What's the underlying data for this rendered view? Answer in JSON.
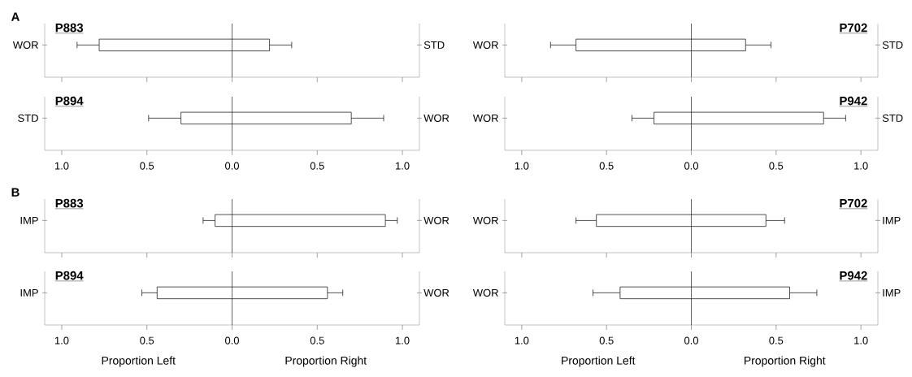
{
  "chart_data": [
    {
      "type": "bar",
      "orientation": "horizontal",
      "title": "P883",
      "subtitle": "A",
      "categories": [
        "WOR"
      ],
      "y2label": "STD",
      "values": [
        1.0
      ],
      "base": [
        -0.78
      ],
      "errors": [
        [
          -0.91,
          0.35
        ]
      ],
      "color": "#ffffff",
      "xlim": [
        -1.1,
        1.1
      ],
      "xticks": [
        {
          "value": -1,
          "label": null
        },
        {
          "value": -0.5,
          "label": null
        },
        {
          "value": 0,
          "label": null
        },
        {
          "value": 0.5,
          "label": null
        },
        {
          "value": 1,
          "label": null
        }
      ],
      "ref_lines": [
        {
          "axis": "x",
          "value": 0
        }
      ],
      "tick_labels": "y"
    },
    {
      "type": "bar",
      "orientation": "horizontal",
      "title": "P702",
      "categories": [
        "WOR"
      ],
      "y2label": "STD",
      "values": [
        1.0
      ],
      "base": [
        -0.68
      ],
      "errors": [
        [
          -0.83,
          0.47
        ]
      ],
      "color": "#ffffff",
      "xlim": [
        -1.1,
        1.1
      ],
      "xticks": [
        {
          "value": -1,
          "label": null
        },
        {
          "value": -0.5,
          "label": null
        },
        {
          "value": 0,
          "label": null
        },
        {
          "value": 0.5,
          "label": null
        },
        {
          "value": 1,
          "label": null
        }
      ],
      "ref_lines": [
        {
          "axis": "x",
          "value": 0
        }
      ],
      "tick_labels": "y"
    },
    {
      "type": "bar",
      "orientation": "horizontal",
      "title": "P894",
      "categories": [
        "STD"
      ],
      "y2label": "WOR",
      "values": [
        1.0
      ],
      "base": [
        -0.3
      ],
      "errors": [
        [
          -0.49,
          0.89
        ]
      ],
      "color": "#ffffff",
      "xlim": [
        -1.1,
        1.1
      ],
      "xticks": [
        {
          "value": -1,
          "label": "1.0"
        },
        {
          "value": -0.5,
          "label": "0.5"
        },
        {
          "value": 0,
          "label": "0.0"
        },
        {
          "value": 0.5,
          "label": "0.5"
        },
        {
          "value": 1,
          "label": "1.0"
        }
      ],
      "ref_lines": [
        {
          "axis": "x",
          "value": 0
        }
      ]
    },
    {
      "type": "bar",
      "orientation": "horizontal",
      "title": "P942",
      "categories": [
        "WOR"
      ],
      "y2label": "STD",
      "values": [
        1.0
      ],
      "base": [
        -0.22
      ],
      "errors": [
        [
          -0.35,
          0.91
        ]
      ],
      "color": "#ffffff",
      "xlim": [
        -1.1,
        1.1
      ],
      "xticks": [
        {
          "value": -1,
          "label": "1.0"
        },
        {
          "value": -0.5,
          "label": "0.5"
        },
        {
          "value": 0,
          "label": "0.0"
        },
        {
          "value": 0.5,
          "label": "0.5"
        },
        {
          "value": 1,
          "label": "1.0"
        }
      ],
      "ref_lines": [
        {
          "axis": "x",
          "value": 0
        }
      ]
    },
    {
      "type": "bar",
      "orientation": "horizontal",
      "title": "P883",
      "subtitle": "B",
      "categories": [
        "IMP"
      ],
      "y2label": "WOR",
      "values": [
        1.0
      ],
      "base": [
        -0.1
      ],
      "errors": [
        [
          -0.17,
          0.97
        ]
      ],
      "color": "#ffffff",
      "xlim": [
        -1.1,
        1.1
      ],
      "xticks": [
        {
          "value": -1,
          "label": null
        },
        {
          "value": -0.5,
          "label": null
        },
        {
          "value": 0,
          "label": null
        },
        {
          "value": 0.5,
          "label": null
        },
        {
          "value": 1,
          "label": null
        }
      ],
      "ref_lines": [
        {
          "axis": "x",
          "value": 0
        }
      ],
      "tick_labels": "y"
    },
    {
      "type": "bar",
      "orientation": "horizontal",
      "title": "P702",
      "categories": [
        "WOR"
      ],
      "y2label": "IMP",
      "values": [
        1.0
      ],
      "base": [
        -0.56
      ],
      "errors": [
        [
          -0.68,
          0.55
        ]
      ],
      "color": "#ffffff",
      "xlim": [
        -1.1,
        1.1
      ],
      "xticks": [
        {
          "value": -1,
          "label": null
        },
        {
          "value": -0.5,
          "label": null
        },
        {
          "value": 0,
          "label": null
        },
        {
          "value": 0.5,
          "label": null
        },
        {
          "value": 1,
          "label": null
        }
      ],
      "ref_lines": [
        {
          "axis": "x",
          "value": 0
        }
      ],
      "tick_labels": "y"
    },
    {
      "type": "bar",
      "orientation": "horizontal",
      "title": "P894",
      "categories": [
        "IMP"
      ],
      "y2label": "WOR",
      "values": [
        1.0
      ],
      "base": [
        -0.44
      ],
      "errors": [
        [
          -0.53,
          0.65
        ]
      ],
      "color": "#ffffff",
      "xlim": [
        -1.1,
        1.1
      ],
      "xticks": [
        {
          "value": -1,
          "label": "1.0"
        },
        {
          "value": -0.5,
          "label": "0.5"
        },
        {
          "value": 0,
          "label": "0.0"
        },
        {
          "value": 0.5,
          "label": "0.5"
        },
        {
          "value": 1,
          "label": "1.0"
        }
      ],
      "ref_lines": [
        {
          "axis": "x",
          "value": 0
        }
      ],
      "annotations": [
        "Proportion Left",
        "Proportion Right"
      ]
    },
    {
      "type": "bar",
      "orientation": "horizontal",
      "title": "P942",
      "categories": [
        "WOR"
      ],
      "y2label": "IMP",
      "values": [
        1.0
      ],
      "base": [
        -0.42
      ],
      "errors": [
        [
          -0.58,
          0.74
        ]
      ],
      "color": "#ffffff",
      "xlim": [
        -1.1,
        1.1
      ],
      "xticks": [
        {
          "value": -1,
          "label": "1.0"
        },
        {
          "value": -0.5,
          "label": "0.5"
        },
        {
          "value": 0,
          "label": "0.0"
        },
        {
          "value": 0.5,
          "label": "0.5"
        },
        {
          "value": 1,
          "label": "1.0"
        }
      ],
      "ref_lines": [
        {
          "axis": "x",
          "value": 0
        }
      ],
      "annotations": [
        "Proportion Left",
        "Proportion Right"
      ]
    }
  ]
}
